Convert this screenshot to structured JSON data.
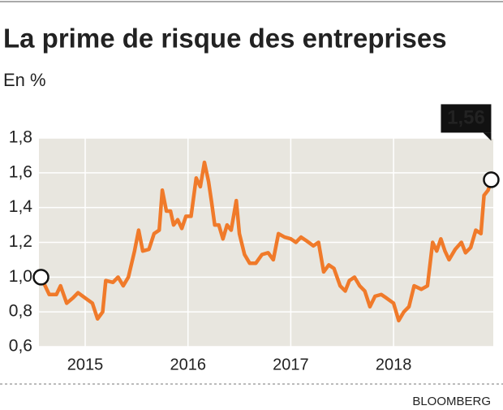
{
  "chart_data": {
    "type": "line",
    "title": "La prime de risque des entreprises",
    "subtitle": "En %",
    "source": "BLOOMBERG",
    "x": [
      2014.57,
      2014.65,
      2014.72,
      2014.76,
      2014.82,
      2014.88,
      2014.93,
      2015.0,
      2015.07,
      2015.12,
      2015.17,
      2015.2,
      2015.27,
      2015.32,
      2015.37,
      2015.42,
      2015.48,
      2015.52,
      2015.56,
      2015.62,
      2015.67,
      2015.72,
      2015.75,
      2015.79,
      2015.83,
      2015.86,
      2015.9,
      2015.94,
      2015.98,
      2016.03,
      2016.08,
      2016.12,
      2016.16,
      2016.2,
      2016.23,
      2016.26,
      2016.3,
      2016.34,
      2016.38,
      2016.42,
      2016.47,
      2016.5,
      2016.55,
      2016.6,
      2016.66,
      2016.72,
      2016.78,
      2016.83,
      2016.88,
      2016.94,
      2017.0,
      2017.05,
      2017.1,
      2017.15,
      2017.22,
      2017.27,
      2017.32,
      2017.37,
      2017.42,
      2017.48,
      2017.53,
      2017.57,
      2017.62,
      2017.67,
      2017.72,
      2017.77,
      2017.82,
      2017.88,
      2017.93,
      2018.0,
      2018.05,
      2018.1,
      2018.15,
      2018.2,
      2018.27,
      2018.33,
      2018.38,
      2018.42,
      2018.46,
      2018.5,
      2018.54,
      2018.6,
      2018.66,
      2018.7,
      2018.75,
      2018.8,
      2018.85,
      2018.88,
      2018.92,
      2018.95
    ],
    "series": [
      {
        "color": "#f07a2a",
        "values": [
          1.0,
          0.9,
          0.9,
          0.95,
          0.85,
          0.88,
          0.91,
          0.88,
          0.85,
          0.76,
          0.8,
          0.98,
          0.97,
          1.0,
          0.95,
          1.0,
          1.15,
          1.27,
          1.15,
          1.16,
          1.25,
          1.27,
          1.5,
          1.38,
          1.38,
          1.3,
          1.33,
          1.28,
          1.35,
          1.35,
          1.57,
          1.52,
          1.66,
          1.55,
          1.43,
          1.3,
          1.3,
          1.22,
          1.3,
          1.27,
          1.44,
          1.25,
          1.13,
          1.08,
          1.08,
          1.13,
          1.14,
          1.1,
          1.25,
          1.23,
          1.22,
          1.2,
          1.23,
          1.21,
          1.18,
          1.2,
          1.03,
          1.07,
          1.05,
          0.95,
          0.92,
          0.98,
          1.0,
          0.95,
          0.92,
          0.83,
          0.89,
          0.9,
          0.88,
          0.85,
          0.75,
          0.8,
          0.83,
          0.95,
          0.93,
          0.95,
          1.2,
          1.15,
          1.22,
          1.15,
          1.1,
          1.16,
          1.2,
          1.14,
          1.17,
          1.27,
          1.25,
          1.47,
          1.5,
          1.56
        ],
        "value_labels": [
          null,
          null,
          null,
          null,
          null,
          null,
          null,
          null,
          null,
          null,
          null,
          null,
          null,
          null,
          null,
          null,
          null,
          null,
          null,
          null,
          null,
          null,
          null,
          null,
          null,
          null,
          null,
          null,
          null,
          null,
          null,
          null,
          null,
          null,
          null,
          null,
          null,
          null,
          null,
          null,
          null,
          null,
          null,
          null,
          null,
          null,
          null,
          null,
          null,
          null,
          null,
          null,
          null,
          null,
          null,
          null,
          null,
          null,
          null,
          null,
          null,
          null,
          null,
          null,
          null,
          null,
          null,
          null,
          null,
          null,
          null,
          null,
          null,
          null,
          null,
          null,
          null,
          null,
          null,
          null,
          null,
          null,
          null,
          null,
          null,
          null,
          null,
          null,
          null,
          "1,56"
        ]
      }
    ],
    "xlim": [
      2014.55,
      2018.97
    ],
    "xticks": [
      2015,
      2016,
      2017,
      2018
    ],
    "ylim": [
      0.6,
      1.8
    ],
    "yticks": [
      {
        "value": 0.6,
        "label": "0,6"
      },
      {
        "value": 0.8,
        "label": "0,8"
      },
      {
        "value": 1.0,
        "label": "1,0"
      },
      {
        "value": 1.2,
        "label": "1,2"
      },
      {
        "value": 1.4,
        "label": "1,4"
      },
      {
        "value": 1.6,
        "label": "1,6"
      },
      {
        "value": 1.8,
        "label": "1,8"
      }
    ],
    "grid": true
  }
}
